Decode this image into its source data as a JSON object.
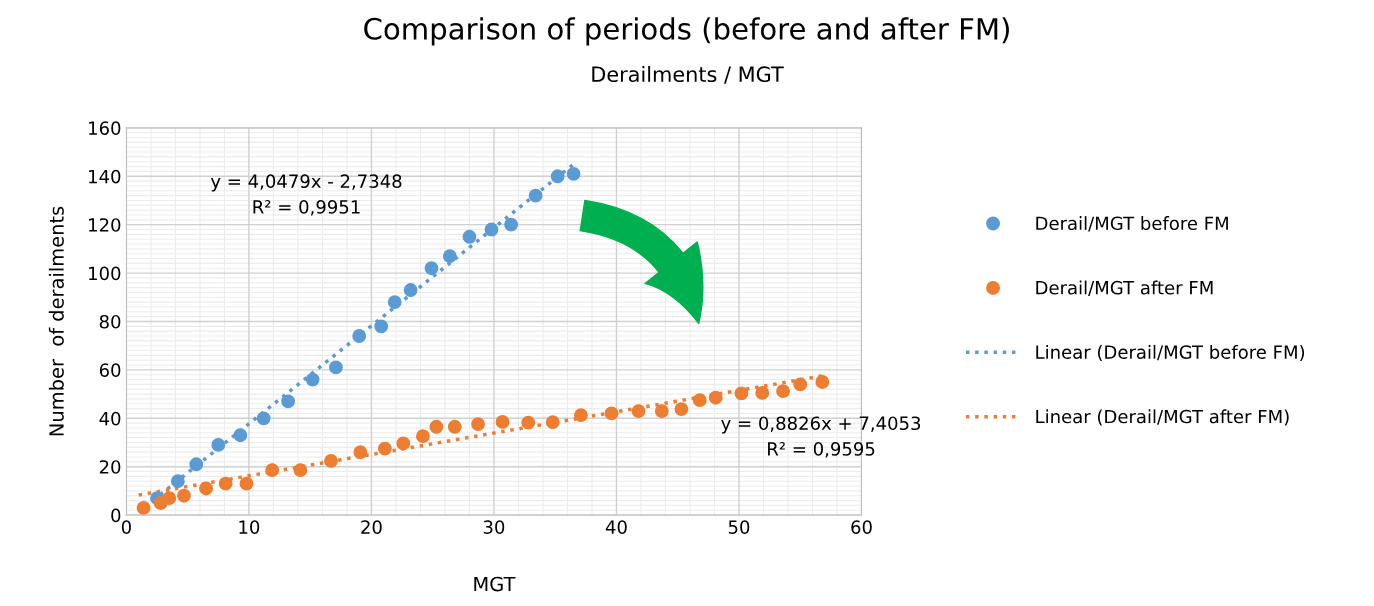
{
  "chart_data": {
    "type": "scatter",
    "title": "Comparison of periods (before and after FM)",
    "subtitle": "Derailments / MGT",
    "xlabel": "MGT",
    "ylabel": "Number  of derailments",
    "xlim": [
      0,
      60
    ],
    "xticks": [
      0,
      10,
      20,
      30,
      40,
      50,
      60
    ],
    "ylim": [
      0,
      160
    ],
    "yticks": [
      0,
      20,
      40,
      60,
      80,
      100,
      120,
      140,
      160
    ],
    "grid": true,
    "legend": "right",
    "marker": "circle",
    "series": [
      {
        "name": "Derail/MGT before FM",
        "color": "#5b9bd5",
        "x": [
          2.5,
          4.2,
          5.7,
          7.5,
          9.3,
          11.2,
          13.2,
          15.2,
          17.1,
          19.0,
          20.8,
          21.9,
          23.2,
          24.9,
          26.4,
          28.0,
          29.8,
          31.4,
          33.4,
          35.2,
          36.5
        ],
        "values": [
          7,
          14,
          21,
          29,
          33,
          40,
          47,
          56,
          61,
          74,
          78,
          88,
          93,
          102,
          107,
          115,
          118,
          120,
          132,
          140,
          141
        ]
      },
      {
        "name": "Derail/MGT after FM",
        "color": "#ed7d31",
        "x": [
          1.4,
          2.8,
          3.5,
          4.7,
          6.5,
          8.1,
          9.8,
          11.9,
          14.2,
          16.7,
          19.1,
          21.1,
          22.6,
          24.2,
          25.3,
          26.8,
          28.7,
          30.7,
          32.8,
          34.8,
          37.1,
          39.6,
          41.8,
          43.7,
          45.3,
          46.8,
          48.1,
          50.2,
          51.9,
          53.6,
          55.0,
          56.8
        ],
        "values": [
          3,
          5,
          7,
          8,
          11,
          13,
          13,
          18.6,
          18.6,
          22.4,
          26,
          27.5,
          29.6,
          32.6,
          36.5,
          36.5,
          37.6,
          38.5,
          38.2,
          38.4,
          41.3,
          42,
          43,
          43,
          43.8,
          47.5,
          48.5,
          50.3,
          50.5,
          51.2,
          54,
          55
        ]
      },
      {
        "name": "Linear (Derail/MGT before FM)",
        "color": "#5b9bd5",
        "type": "line",
        "line_style": "dotted",
        "marker": "none",
        "x": [
          1,
          36.5
        ],
        "values": [
          1.3,
          145
        ]
      },
      {
        "name": "Linear (Derail/MGT after FM)",
        "color": "#ed7d31",
        "type": "line",
        "line_style": "dotted",
        "marker": "none",
        "x": [
          1,
          57
        ],
        "values": [
          8.3,
          57.7
        ]
      }
    ],
    "annotations": [
      "y = 4,0479x - 2,7348\nR² = 0,9951",
      "y = 0,8826x + 7,4053\nR² = 0,9595"
    ]
  }
}
